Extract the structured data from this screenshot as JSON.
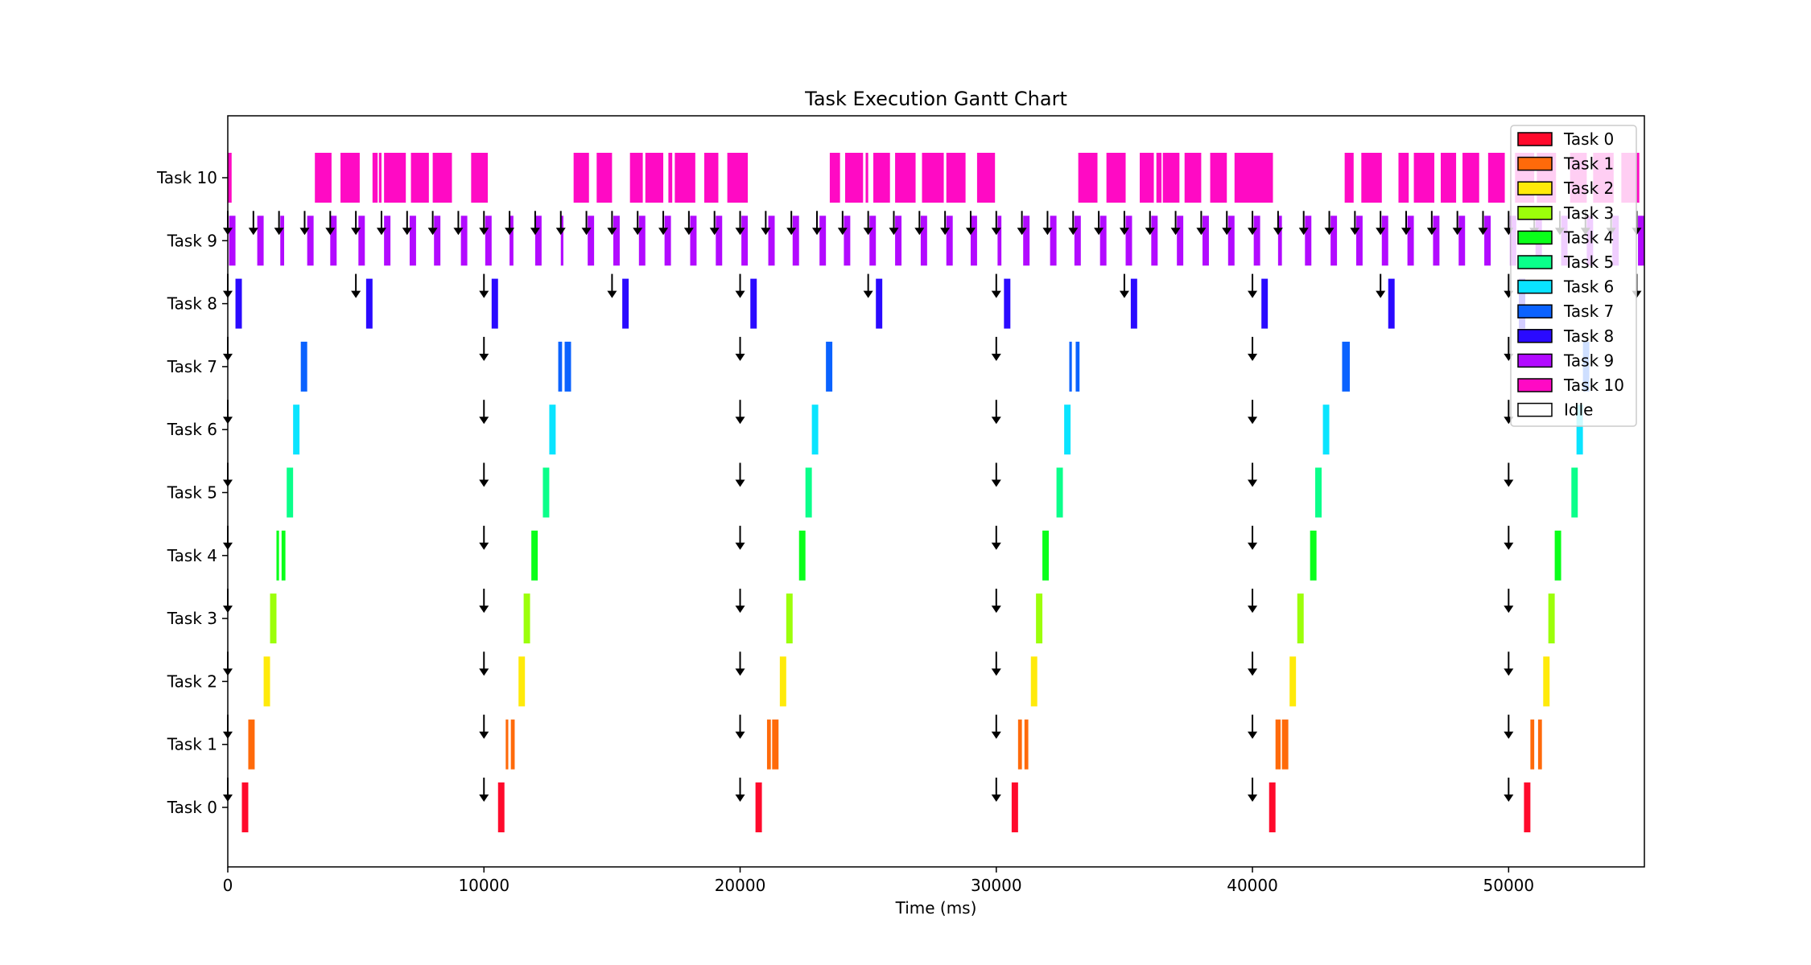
{
  "chart_data": {
    "type": "gantt",
    "title": "Task Execution Gantt Chart",
    "xlabel": "Time (ms)",
    "ylabel": "",
    "xlim": [
      0,
      55300
    ],
    "xticks": [
      0,
      10000,
      20000,
      30000,
      40000,
      50000
    ],
    "tasks": [
      "Task 0",
      "Task 1",
      "Task 2",
      "Task 3",
      "Task 4",
      "Task 5",
      "Task 6",
      "Task 7",
      "Task 8",
      "Task 9",
      "Task 10"
    ],
    "colors": [
      "#ff0a2c",
      "#ff6a0a",
      "#ffea0a",
      "#9cff0a",
      "#0aff1a",
      "#0aff8a",
      "#0ae4ff",
      "#0a62ff",
      "#2a0aff",
      "#b20aff",
      "#ff0ac4"
    ],
    "periods_ms": [
      10000,
      10000,
      10000,
      10000,
      10000,
      10000,
      10000,
      10000,
      5000,
      1000,
      0
    ],
    "arrival_offset_ms": [
      0,
      0,
      0,
      0,
      0,
      0,
      0,
      0,
      0,
      0,
      0
    ],
    "executions": [
      [
        [
          550,
          250
        ],
        [
          10550,
          250
        ],
        [
          20600,
          250
        ],
        [
          30600,
          250
        ],
        [
          40650,
          250
        ],
        [
          50600,
          250
        ]
      ],
      [
        [
          800,
          250
        ],
        [
          10850,
          100
        ],
        [
          11050,
          150
        ],
        [
          21050,
          150
        ],
        [
          21250,
          250
        ],
        [
          30850,
          150
        ],
        [
          31100,
          150
        ],
        [
          40900,
          200
        ],
        [
          41150,
          250
        ],
        [
          50850,
          150
        ],
        [
          51150,
          150
        ]
      ],
      [
        [
          1400,
          250
        ],
        [
          11350,
          250
        ],
        [
          21550,
          250
        ],
        [
          31350,
          250
        ],
        [
          41450,
          250
        ],
        [
          51350,
          250
        ]
      ],
      [
        [
          1650,
          250
        ],
        [
          11550,
          250
        ],
        [
          21800,
          250
        ],
        [
          31550,
          250
        ],
        [
          41750,
          250
        ],
        [
          51550,
          250
        ]
      ],
      [
        [
          1900,
          100
        ],
        [
          2100,
          150
        ],
        [
          11850,
          250
        ],
        [
          22300,
          250
        ],
        [
          31800,
          250
        ],
        [
          42250,
          250
        ],
        [
          51800,
          250
        ]
      ],
      [
        [
          2300,
          250
        ],
        [
          12300,
          250
        ],
        [
          22550,
          250
        ],
        [
          32350,
          250
        ],
        [
          42450,
          250
        ],
        [
          52450,
          250
        ]
      ],
      [
        [
          2550,
          250
        ],
        [
          12550,
          250
        ],
        [
          22800,
          250
        ],
        [
          32650,
          250
        ],
        [
          42750,
          250
        ],
        [
          52650,
          250
        ]
      ],
      [
        [
          2850,
          250
        ],
        [
          12900,
          150
        ],
        [
          13150,
          250
        ],
        [
          23350,
          250
        ],
        [
          32850,
          100
        ],
        [
          33100,
          150
        ],
        [
          43500,
          300
        ],
        [
          52900,
          250
        ]
      ],
      [
        [
          300,
          250
        ],
        [
          5400,
          250
        ],
        [
          10300,
          250
        ],
        [
          15400,
          250
        ],
        [
          20400,
          250
        ],
        [
          25300,
          250
        ],
        [
          30300,
          250
        ],
        [
          35250,
          250
        ],
        [
          40350,
          250
        ],
        [
          45300,
          250
        ],
        [
          50400,
          250
        ]
      ],
      [
        [
          50,
          250
        ],
        [
          1150,
          250
        ],
        [
          2050,
          150
        ],
        [
          3100,
          250
        ],
        [
          4000,
          250
        ],
        [
          5100,
          250
        ],
        [
          6100,
          250
        ],
        [
          7100,
          250
        ],
        [
          8050,
          250
        ],
        [
          9100,
          250
        ],
        [
          10050,
          250
        ],
        [
          11000,
          150
        ],
        [
          12000,
          250
        ],
        [
          13000,
          100
        ],
        [
          14050,
          250
        ],
        [
          15050,
          250
        ],
        [
          16050,
          250
        ],
        [
          17050,
          250
        ],
        [
          18050,
          250
        ],
        [
          19050,
          250
        ],
        [
          20050,
          250
        ],
        [
          21100,
          250
        ],
        [
          22050,
          250
        ],
        [
          23100,
          250
        ],
        [
          24050,
          250
        ],
        [
          25050,
          250
        ],
        [
          26050,
          250
        ],
        [
          27050,
          250
        ],
        [
          28050,
          250
        ],
        [
          29000,
          250
        ],
        [
          30050,
          150
        ],
        [
          31050,
          250
        ],
        [
          32100,
          250
        ],
        [
          33050,
          250
        ],
        [
          34050,
          250
        ],
        [
          35050,
          250
        ],
        [
          36050,
          250
        ],
        [
          37050,
          250
        ],
        [
          38050,
          250
        ],
        [
          39050,
          250
        ],
        [
          40050,
          250
        ],
        [
          41000,
          150
        ],
        [
          42050,
          250
        ],
        [
          43050,
          250
        ],
        [
          44050,
          250
        ],
        [
          45050,
          250
        ],
        [
          46050,
          250
        ],
        [
          47050,
          250
        ],
        [
          48050,
          250
        ],
        [
          49050,
          250
        ],
        [
          50050,
          250
        ],
        [
          51050,
          250
        ],
        [
          52050,
          250
        ],
        [
          53050,
          250
        ],
        [
          54050,
          250
        ],
        [
          55050,
          250
        ]
      ],
      [
        [
          0,
          150
        ],
        [
          3400,
          650
        ],
        [
          4400,
          750
        ],
        [
          5650,
          200
        ],
        [
          5900,
          100
        ],
        [
          6100,
          850
        ],
        [
          7150,
          700
        ],
        [
          8000,
          750
        ],
        [
          9500,
          650
        ],
        [
          13500,
          600
        ],
        [
          14400,
          600
        ],
        [
          15700,
          500
        ],
        [
          16300,
          700
        ],
        [
          17200,
          150
        ],
        [
          17450,
          800
        ],
        [
          18600,
          550
        ],
        [
          19500,
          800
        ],
        [
          23500,
          400
        ],
        [
          24100,
          700
        ],
        [
          24900,
          100
        ],
        [
          25200,
          650
        ],
        [
          26050,
          800
        ],
        [
          27100,
          850
        ],
        [
          28050,
          750
        ],
        [
          29250,
          700
        ],
        [
          33200,
          750
        ],
        [
          34300,
          750
        ],
        [
          35600,
          550
        ],
        [
          36250,
          200
        ],
        [
          36500,
          650
        ],
        [
          37350,
          650
        ],
        [
          38350,
          650
        ],
        [
          39300,
          750
        ],
        [
          39900,
          900
        ],
        [
          43600,
          350
        ],
        [
          44250,
          800
        ],
        [
          45700,
          400
        ],
        [
          46300,
          800
        ],
        [
          47350,
          600
        ],
        [
          48200,
          650
        ],
        [
          49200,
          650
        ],
        [
          50250,
          750
        ],
        [
          51100,
          750
        ],
        [
          52400,
          650
        ],
        [
          53300,
          800
        ],
        [
          54400,
          700
        ]
      ]
    ],
    "legend": {
      "position": "top-right",
      "entries": [
        "Task 0",
        "Task 1",
        "Task 2",
        "Task 3",
        "Task 4",
        "Task 5",
        "Task 6",
        "Task 7",
        "Task 8",
        "Task 9",
        "Task 10",
        "Idle"
      ],
      "colors": [
        "#ff0a2c",
        "#ff6a0a",
        "#ffea0a",
        "#9cff0a",
        "#0aff1a",
        "#0aff8a",
        "#0ae4ff",
        "#0a62ff",
        "#2a0aff",
        "#b20aff",
        "#ff0ac4",
        "#ffffff"
      ]
    }
  }
}
